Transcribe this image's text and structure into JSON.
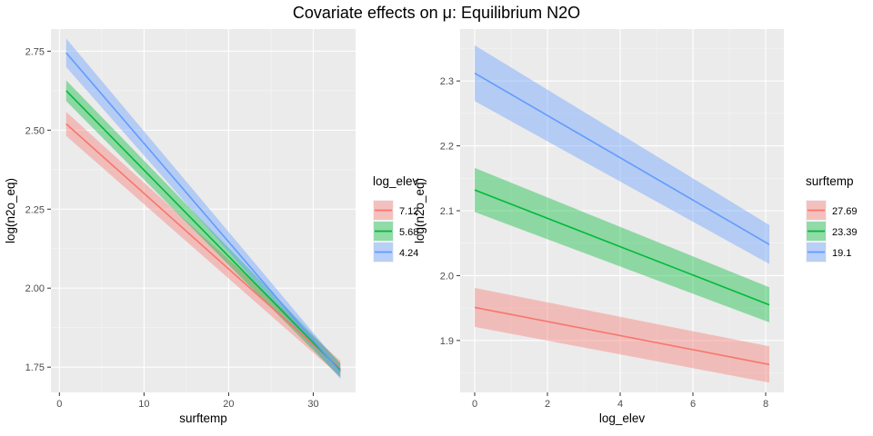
{
  "figure": {
    "title": "Covariate effects on μ: Equilibrium N2O"
  },
  "chart_data": [
    {
      "type": "line",
      "xlabel": "surftemp",
      "ylabel": "log(n2o_eq)",
      "xlim": [
        -1,
        35
      ],
      "ylim": [
        1.67,
        2.82
      ],
      "xticks": [
        0,
        10,
        20,
        30
      ],
      "yticks": [
        1.75,
        2.0,
        2.25,
        2.5,
        2.75
      ],
      "ytick_labels": [
        "1.75",
        "2.00",
        "2.25",
        "2.50",
        "2.75"
      ],
      "grid": true,
      "legend": {
        "title": "log_elev",
        "placement": "right"
      },
      "series": [
        {
          "name": "7.12",
          "color": "#F8766D",
          "x": [
            0.8,
            33.2
          ],
          "y": [
            2.52,
            1.745
          ],
          "band": [
            0.038,
            0.025
          ]
        },
        {
          "name": "5.68",
          "color": "#00BA38",
          "x": [
            0.8,
            33.2
          ],
          "y": [
            2.625,
            1.74
          ],
          "band": [
            0.033,
            0.023
          ]
        },
        {
          "name": "4.24",
          "color": "#619CFF",
          "x": [
            0.8,
            33.2
          ],
          "y": [
            2.745,
            1.735
          ],
          "band": [
            0.045,
            0.022
          ]
        }
      ]
    },
    {
      "type": "line",
      "xlabel": "log_elev",
      "ylabel": "log(n2o_eq)",
      "xlim": [
        -0.4,
        8.5
      ],
      "ylim": [
        1.82,
        2.38
      ],
      "xticks": [
        0,
        2,
        4,
        6,
        8
      ],
      "yticks": [
        1.9,
        2.0,
        2.1,
        2.2,
        2.3
      ],
      "ytick_labels": [
        "1.9",
        "2.0",
        "2.1",
        "2.2",
        "2.3"
      ],
      "grid": true,
      "legend": {
        "title": "surftemp",
        "placement": "right"
      },
      "series": [
        {
          "name": "27.69",
          "color": "#F8766D",
          "x": [
            0,
            8.1
          ],
          "y": [
            1.951,
            1.863
          ],
          "band": [
            0.03,
            0.028
          ]
        },
        {
          "name": "23.39",
          "color": "#00BA38",
          "x": [
            0,
            8.1
          ],
          "y": [
            2.132,
            1.955
          ],
          "band": [
            0.034,
            0.027
          ]
        },
        {
          "name": "19.1",
          "color": "#619CFF",
          "x": [
            0,
            8.1
          ],
          "y": [
            2.312,
            2.048
          ],
          "band": [
            0.043,
            0.03
          ]
        }
      ]
    }
  ]
}
